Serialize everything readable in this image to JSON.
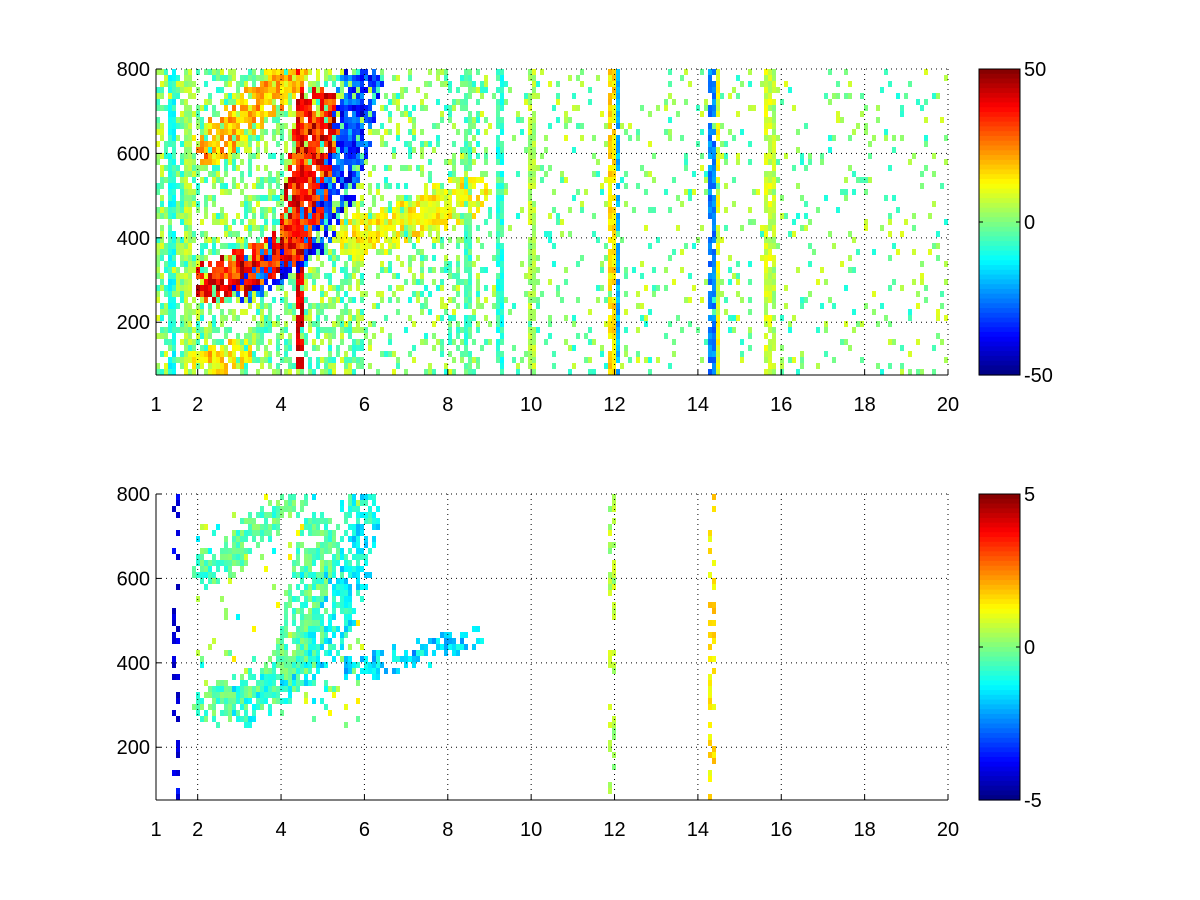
{
  "chart_data": [
    {
      "type": "heatmap",
      "title": "",
      "xlabel": "",
      "ylabel": "",
      "xlim": [
        1,
        20
      ],
      "ylim": [
        75,
        800
      ],
      "xticks": [
        1,
        2,
        4,
        6,
        8,
        10,
        12,
        14,
        16,
        18,
        20
      ],
      "yticks": [
        200,
        400,
        600,
        800
      ],
      "grid": true,
      "colormap": "jet",
      "clim": [
        -50,
        50
      ],
      "colorbar_ticks": [
        50,
        0,
        -50
      ],
      "nan_color": "#ffffff",
      "features": {
        "ridges": [
          {
            "points": [
              [
                2.4,
                300
              ],
              [
                3.0,
                315
              ],
              [
                3.6,
                345
              ],
              [
                4.1,
                380
              ],
              [
                4.4,
                430
              ],
              [
                4.6,
                520
              ],
              [
                4.8,
                620
              ],
              [
                4.9,
                700
              ]
            ],
            "value": 45,
            "width": 22
          },
          {
            "points": [
              [
                3.2,
                300
              ],
              [
                3.6,
                330
              ],
              [
                4.1,
                360
              ],
              [
                4.6,
                400
              ],
              [
                5.0,
                460
              ],
              [
                5.4,
                540
              ],
              [
                5.7,
                640
              ],
              [
                5.9,
                760
              ]
            ],
            "value": -40,
            "width": 22
          },
          {
            "points": [
              [
                2.3,
                620
              ],
              [
                2.8,
                660
              ],
              [
                3.3,
                700
              ],
              [
                3.8,
                750
              ],
              [
                4.2,
                790
              ]
            ],
            "value": 25,
            "width": 20
          },
          {
            "points": [
              [
                5.8,
                400
              ],
              [
                6.6,
                420
              ],
              [
                7.5,
                460
              ],
              [
                8.5,
                500
              ]
            ],
            "value": 15,
            "width": 22
          },
          {
            "points": [
              [
                2.0,
                100
              ],
              [
                2.5,
                110
              ],
              [
                3.0,
                130
              ]
            ],
            "value": 20,
            "width": 15
          }
        ],
        "vertical_bands": [
          {
            "x": 1.35,
            "value": -10
          },
          {
            "x": 1.8,
            "value": 5
          },
          {
            "x": 4.45,
            "value": 40
          },
          {
            "x": 8.5,
            "value": -5
          },
          {
            "x": 9.3,
            "value": -8
          },
          {
            "x": 10.05,
            "value": 5
          },
          {
            "x": 11.95,
            "value": 15
          },
          {
            "x": 12.0,
            "value": -20
          },
          {
            "x": 14.3,
            "value": -25
          },
          {
            "x": 14.4,
            "value": 10
          },
          {
            "x": 15.65,
            "value": 8
          },
          {
            "x": 15.75,
            "value": 5
          }
        ],
        "background_noise_range": [
          -10,
          10
        ]
      }
    },
    {
      "type": "heatmap",
      "title": "",
      "xlabel": "",
      "ylabel": "",
      "xlim": [
        1,
        20
      ],
      "ylim": [
        75,
        800
      ],
      "xticks": [
        1,
        2,
        4,
        6,
        8,
        10,
        12,
        14,
        16,
        18,
        20
      ],
      "yticks": [
        200,
        400,
        600,
        800
      ],
      "grid": true,
      "colormap": "jet",
      "clim": [
        -5,
        5
      ],
      "colorbar_ticks": [
        5,
        0,
        -5
      ],
      "nan_color": "#ffffff",
      "features": {
        "ridges": [
          {
            "points": [
              [
                2.4,
                300
              ],
              [
                3.0,
                315
              ],
              [
                3.6,
                345
              ],
              [
                4.1,
                380
              ],
              [
                4.4,
                430
              ],
              [
                4.6,
                520
              ],
              [
                4.8,
                620
              ],
              [
                4.9,
                700
              ]
            ],
            "value": -0.5,
            "width": 22
          },
          {
            "points": [
              [
                3.2,
                300
              ],
              [
                3.6,
                330
              ],
              [
                4.1,
                360
              ],
              [
                4.6,
                400
              ],
              [
                5.0,
                460
              ],
              [
                5.4,
                540
              ],
              [
                5.7,
                640
              ],
              [
                5.9,
                760
              ]
            ],
            "value": -1.5,
            "width": 22
          },
          {
            "points": [
              [
                2.3,
                620
              ],
              [
                2.8,
                660
              ],
              [
                3.3,
                700
              ],
              [
                3.8,
                750
              ],
              [
                4.2,
                790
              ]
            ],
            "value": -0.5,
            "width": 18
          },
          {
            "points": [
              [
                5.8,
                390
              ],
              [
                6.6,
                405
              ],
              [
                7.5,
                425
              ],
              [
                8.5,
                460
              ]
            ],
            "value": -2.0,
            "width": 14
          }
        ],
        "vertical_bands": [
          {
            "x": 1.45,
            "value": -4
          },
          {
            "x": 11.95,
            "value": 0.5
          },
          {
            "x": 14.35,
            "value": 1.5
          }
        ]
      }
    }
  ]
}
